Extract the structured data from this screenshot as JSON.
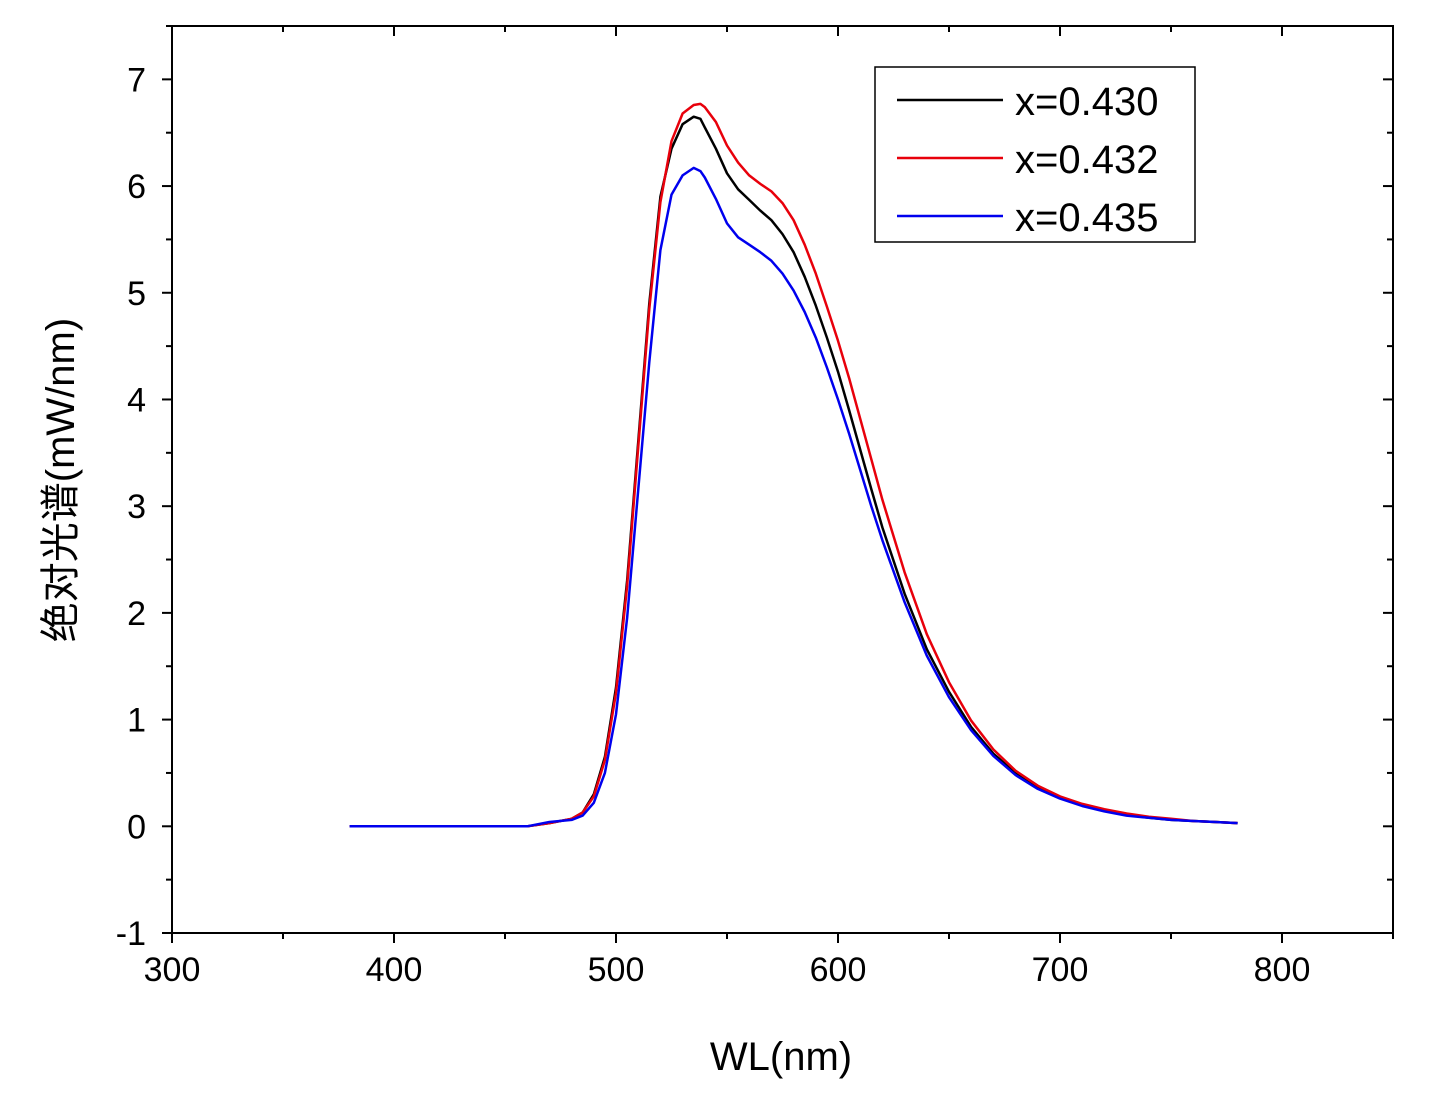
{
  "chart_data": {
    "type": "line",
    "title": "",
    "xlabel": "WL(nm)",
    "ylabel": "绝对光谱(mW/nm)",
    "xlim": [
      300,
      850
    ],
    "ylim": [
      -1,
      7.5
    ],
    "xticks": [
      300,
      400,
      500,
      600,
      700,
      800
    ],
    "yticks": [
      -1,
      0,
      1,
      2,
      3,
      4,
      5,
      6,
      7
    ],
    "grid": false,
    "legend": "top-right",
    "x": [
      380,
      400,
      420,
      440,
      460,
      470,
      480,
      485,
      490,
      495,
      500,
      505,
      510,
      515,
      520,
      525,
      530,
      535,
      538,
      540,
      545,
      550,
      555,
      560,
      565,
      570,
      575,
      580,
      585,
      590,
      595,
      600,
      605,
      610,
      615,
      620,
      630,
      640,
      650,
      660,
      670,
      680,
      690,
      700,
      710,
      720,
      730,
      740,
      750,
      760,
      770,
      780
    ],
    "series": [
      {
        "name": "x=0.430",
        "color": "#000000",
        "values": [
          0,
          0,
          0,
          0,
          0,
          0.03,
          0.07,
          0.13,
          0.3,
          0.65,
          1.3,
          2.3,
          3.6,
          4.9,
          5.9,
          6.35,
          6.58,
          6.65,
          6.63,
          6.55,
          6.35,
          6.12,
          5.97,
          5.87,
          5.77,
          5.68,
          5.55,
          5.38,
          5.15,
          4.88,
          4.58,
          4.26,
          3.9,
          3.53,
          3.16,
          2.8,
          2.18,
          1.66,
          1.26,
          0.93,
          0.68,
          0.5,
          0.36,
          0.27,
          0.2,
          0.15,
          0.11,
          0.08,
          0.06,
          0.05,
          0.04,
          0.03
        ]
      },
      {
        "name": "x=0.432",
        "color": "#e8000b",
        "values": [
          0,
          0,
          0,
          0,
          0,
          0.03,
          0.07,
          0.13,
          0.28,
          0.62,
          1.25,
          2.25,
          3.55,
          4.85,
          5.85,
          6.42,
          6.68,
          6.76,
          6.77,
          6.74,
          6.6,
          6.38,
          6.22,
          6.1,
          6.02,
          5.95,
          5.84,
          5.68,
          5.45,
          5.18,
          4.87,
          4.55,
          4.2,
          3.82,
          3.44,
          3.06,
          2.38,
          1.8,
          1.35,
          0.99,
          0.72,
          0.52,
          0.38,
          0.28,
          0.21,
          0.16,
          0.12,
          0.09,
          0.07,
          0.05,
          0.04,
          0.03
        ]
      },
      {
        "name": "x=0.435",
        "color": "#0000ee",
        "values": [
          0,
          0,
          0,
          0,
          0,
          0.04,
          0.06,
          0.1,
          0.22,
          0.5,
          1.05,
          1.95,
          3.15,
          4.35,
          5.4,
          5.92,
          6.1,
          6.17,
          6.14,
          6.08,
          5.88,
          5.65,
          5.52,
          5.45,
          5.38,
          5.3,
          5.18,
          5.02,
          4.82,
          4.58,
          4.3,
          4.0,
          3.68,
          3.34,
          3.0,
          2.68,
          2.1,
          1.6,
          1.21,
          0.9,
          0.66,
          0.48,
          0.35,
          0.26,
          0.19,
          0.14,
          0.1,
          0.08,
          0.06,
          0.05,
          0.04,
          0.03
        ]
      }
    ]
  }
}
